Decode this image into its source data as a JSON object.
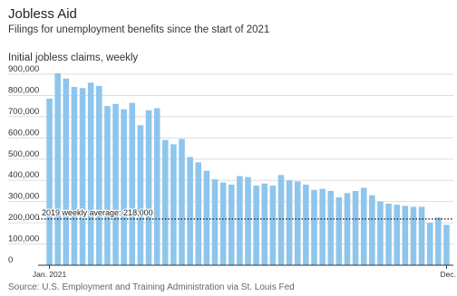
{
  "header": {
    "title": "Jobless Aid",
    "subtitle": "Filings for unemployment benefits since the start of 2021"
  },
  "footer": {
    "source": "Source: U.S. Employment and Training Administration via St. Louis Fed"
  },
  "colors": {
    "bar": "#8ec5ec",
    "grid": "#dddddd",
    "baseline": "#333333",
    "reference_line": "#222222",
    "text": "#333333"
  },
  "chart_data": {
    "type": "bar",
    "title": "Jobless Aid",
    "subtitle": "Filings for unemployment benefits since the start of 2021",
    "ylabel": "Initial jobless claims, weekly",
    "xlabel": "",
    "x_tick_labels": [
      "Jan. 2021",
      "Dec."
    ],
    "y_ticks": [
      0,
      100000,
      200000,
      300000,
      400000,
      500000,
      600000,
      700000,
      800000,
      900000
    ],
    "y_tick_labels": [
      "0",
      "100,000",
      "200,000",
      "300,000",
      "400,000",
      "500,000",
      "600,000",
      "700,000",
      "800,000",
      "900,000"
    ],
    "ylim": [
      0,
      900000
    ],
    "grid": true,
    "annotation": {
      "label": "2019 weekly average: 218,000",
      "value": 218000
    },
    "series": [
      {
        "values": [
          785000,
          905000,
          880000,
          840000,
          835000,
          860000,
          845000,
          750000,
          760000,
          735000,
          765000,
          660000,
          730000,
          740000,
          590000,
          570000,
          595000,
          510000,
          485000,
          445000,
          405000,
          390000,
          380000,
          420000,
          415000,
          375000,
          385000,
          375000,
          425000,
          400000,
          395000,
          380000,
          355000,
          360000,
          350000,
          320000,
          340000,
          350000,
          365000,
          330000,
          300000,
          290000,
          285000,
          280000,
          275000,
          275000,
          200000,
          225000,
          190000
        ]
      }
    ]
  }
}
